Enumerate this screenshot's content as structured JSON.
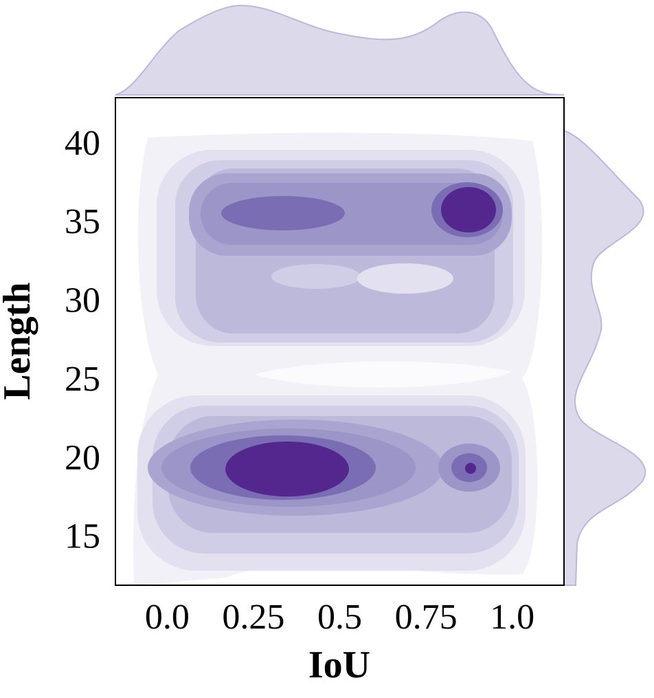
{
  "chart_data": {
    "type": "kde",
    "xlabel": "IoU",
    "ylabel": "Length",
    "xlim": [
      -0.15,
      1.15
    ],
    "ylim": [
      12.1,
      43.1
    ],
    "xticks": [
      {
        "value": 0,
        "label": "0.0"
      },
      0.25,
      0.5,
      0.75,
      {
        "value": 1,
        "label": "1.0"
      }
    ],
    "yticks": [
      15,
      20,
      25,
      30,
      35,
      40
    ]
  }
}
